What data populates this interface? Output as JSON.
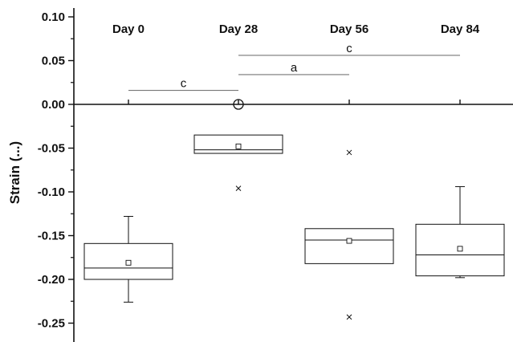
{
  "chart_data": {
    "type": "box",
    "title": "",
    "xlabel": "",
    "ylabel": "Strain (...)",
    "ylim": [
      -0.28,
      0.1
    ],
    "yticks": [
      0.1,
      0.05,
      0.0,
      -0.05,
      -0.1,
      -0.15,
      -0.2,
      -0.25
    ],
    "ytick_labels": [
      "0.10",
      "0.05",
      "0.00",
      "-0.05",
      "-0.10",
      "-0.15",
      "-0.20",
      "-0.25"
    ],
    "categories": [
      "Day 0",
      "Day 28",
      "Day 56",
      "Day 84"
    ],
    "boxes": [
      {
        "category": "Day 0",
        "q1": -0.2,
        "median": -0.187,
        "q3": -0.159,
        "mean": -0.181,
        "whisker_low": -0.226,
        "whisker_high": -0.128,
        "outliers": []
      },
      {
        "category": "Day 28",
        "q1": -0.056,
        "median": -0.052,
        "q3": -0.035,
        "mean": -0.048,
        "whisker_low": null,
        "whisker_high": null,
        "outliers": [
          -0.096,
          0.0
        ]
      },
      {
        "category": "Day 56",
        "q1": -0.182,
        "median": -0.155,
        "q3": -0.142,
        "mean": -0.156,
        "whisker_low": null,
        "whisker_high": null,
        "outliers": [
          -0.055,
          -0.243
        ]
      },
      {
        "category": "Day 84",
        "q1": -0.196,
        "median": -0.172,
        "q3": -0.137,
        "mean": -0.165,
        "whisker_low": -0.198,
        "whisker_high": -0.094,
        "outliers": []
      }
    ],
    "significance": [
      {
        "from": "Day 0",
        "to": "Day 28",
        "label": "c",
        "y": 0.016
      },
      {
        "from": "Day 28",
        "to": "Day 56",
        "label": "a",
        "y": 0.034
      },
      {
        "from": "Day 28",
        "to": "Day 84",
        "label": "c",
        "y": 0.056
      }
    ],
    "zero_line": true,
    "grid": false
  }
}
